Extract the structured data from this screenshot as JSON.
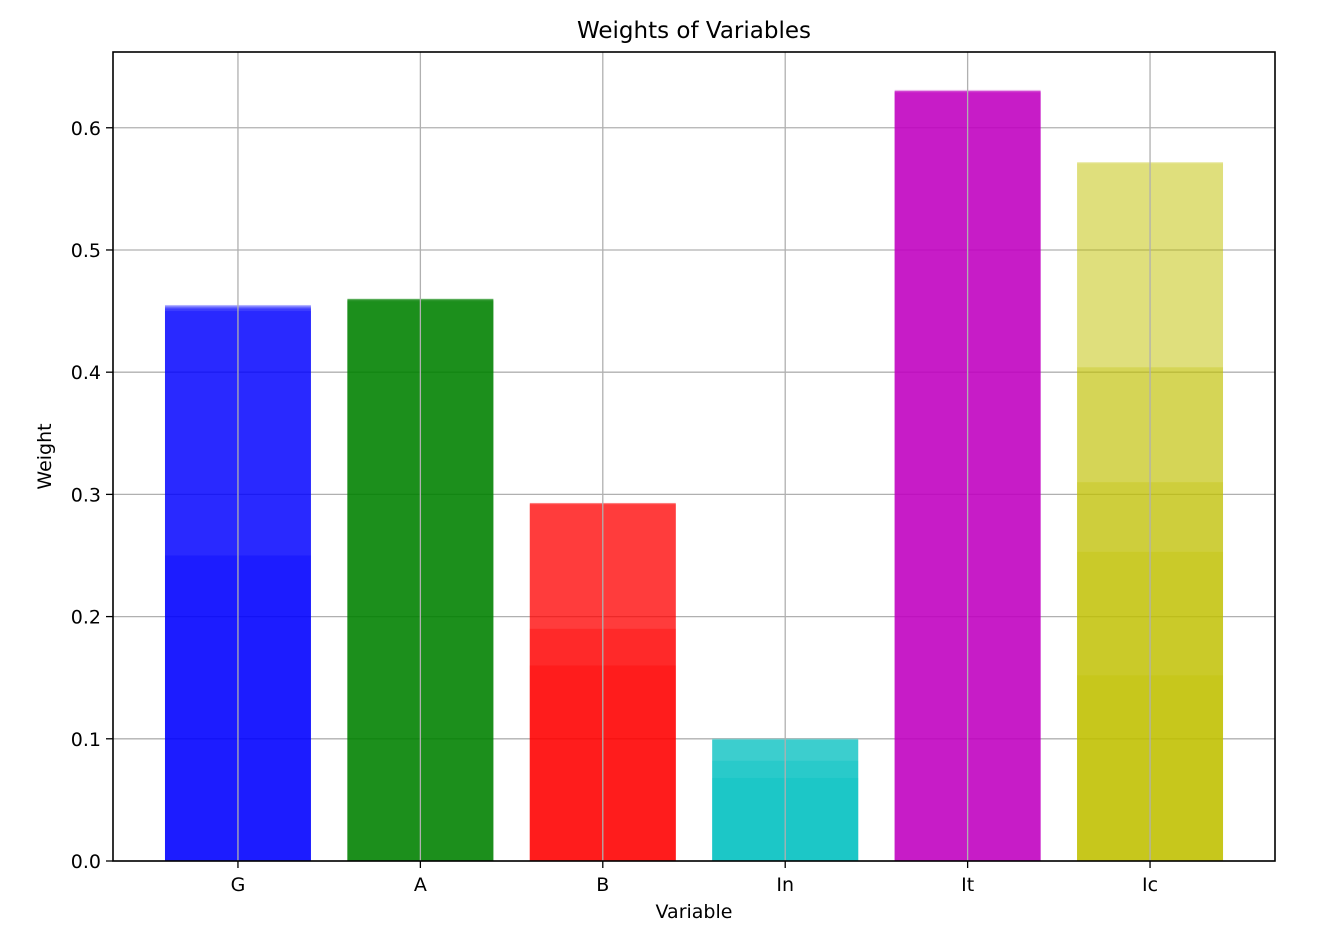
{
  "chart_data": {
    "type": "bar",
    "title": "Weights of Variables",
    "xlabel": "Variable",
    "ylabel": "Weight",
    "categories": [
      "G",
      "A",
      "B",
      "In",
      "It",
      "Ic"
    ],
    "ylim": [
      0,
      0.662
    ],
    "yticks": [
      0.0,
      0.1,
      0.2,
      0.3,
      0.4,
      0.5,
      0.6
    ],
    "ytick_labels": [
      "0.0",
      "0.1",
      "0.2",
      "0.3",
      "0.4",
      "0.5",
      "0.6"
    ],
    "grid": true,
    "colors": [
      "#0000ff",
      "#008000",
      "#ff0000",
      "#00bfbf",
      "#bf00bf",
      "#bfbf00"
    ],
    "series": [
      {
        "values": [
          0.25,
          0.46,
          0.16,
          0.068,
          0.63,
          0.152
        ]
      },
      {
        "values": [
          0.45,
          0.459,
          0.19,
          0.082,
          0.629,
          0.253
        ]
      },
      {
        "values": [
          0.452,
          0.46,
          0.292,
          0.099,
          0.63,
          0.31
        ]
      },
      {
        "values": [
          0.453,
          0.458,
          0.293,
          0.1,
          0.629,
          0.404
        ]
      },
      {
        "values": [
          0.455,
          0.46,
          0.292,
          0.1,
          0.631,
          0.571
        ]
      },
      {
        "values": [
          0.454,
          0.459,
          0.293,
          0.099,
          0.63,
          0.572
        ]
      }
    ],
    "alpha": 0.3
  }
}
